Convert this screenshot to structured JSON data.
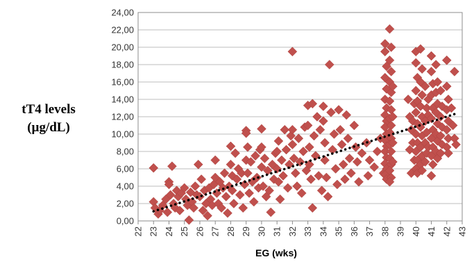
{
  "chart_data": {
    "type": "scatter",
    "ylabel_line1": "tT4  levels",
    "ylabel_line2": "(µg/dL)",
    "xlabel": "EG (wks)",
    "xlim": [
      22,
      43
    ],
    "ylim": [
      0,
      24
    ],
    "x_ticks": [
      "22",
      "23",
      "24",
      "25",
      "26",
      "27",
      "28",
      "29",
      "30",
      "31",
      "32",
      "33",
      "34",
      "35",
      "36",
      "37",
      "38",
      "39",
      "40",
      "41",
      "42",
      "43"
    ],
    "y_ticks": [
      "0,00",
      "2,00",
      "4,00",
      "6,00",
      "8,00",
      "10,00",
      "12,00",
      "14,00",
      "16,00",
      "18,00",
      "20,00",
      "22,00",
      "24,00"
    ],
    "trendline": {
      "style": "dotted",
      "color": "#000000",
      "x": [
        23,
        42.5
      ],
      "y": [
        1.1,
        12.3
      ]
    },
    "series": [
      {
        "marker": "diamond",
        "color": "#C0504D",
        "points": [
          [
            23.0,
            6.1
          ],
          [
            23.0,
            2.2
          ],
          [
            23.1,
            1.5
          ],
          [
            23.3,
            0.8
          ],
          [
            23.4,
            1.2
          ],
          [
            23.6,
            1.8
          ],
          [
            23.8,
            2.5
          ],
          [
            23.9,
            1.0
          ],
          [
            24.0,
            4.5
          ],
          [
            24.0,
            4.2
          ],
          [
            24.2,
            6.3
          ],
          [
            24.1,
            3.0
          ],
          [
            24.3,
            2.0
          ],
          [
            24.4,
            1.5
          ],
          [
            24.5,
            3.5
          ],
          [
            24.6,
            2.8
          ],
          [
            24.7,
            1.2
          ],
          [
            24.8,
            3.2
          ],
          [
            25.0,
            3.8
          ],
          [
            25.1,
            2.5
          ],
          [
            25.2,
            1.8
          ],
          [
            25.3,
            0.1
          ],
          [
            25.4,
            3.3
          ],
          [
            25.5,
            2.2
          ],
          [
            25.6,
            1.5
          ],
          [
            25.7,
            4.0
          ],
          [
            25.8,
            3.0
          ],
          [
            25.9,
            6.5
          ],
          [
            26.0,
            2.8
          ],
          [
            26.1,
            4.8
          ],
          [
            26.2,
            1.2
          ],
          [
            26.3,
            3.5
          ],
          [
            26.4,
            2.0
          ],
          [
            26.5,
            0.6
          ],
          [
            26.6,
            3.8
          ],
          [
            26.7,
            2.5
          ],
          [
            26.8,
            1.8
          ],
          [
            26.9,
            4.2
          ],
          [
            27.0,
            5.0
          ],
          [
            27.0,
            7.0
          ],
          [
            27.1,
            3.2
          ],
          [
            27.2,
            2.0
          ],
          [
            27.3,
            4.5
          ],
          [
            27.4,
            1.5
          ],
          [
            27.5,
            3.8
          ],
          [
            27.6,
            5.5
          ],
          [
            27.7,
            2.8
          ],
          [
            27.8,
            0.9
          ],
          [
            27.9,
            4.0
          ],
          [
            28.0,
            8.6
          ],
          [
            28.0,
            6.5
          ],
          [
            28.1,
            5.2
          ],
          [
            28.1,
            3.5
          ],
          [
            28.2,
            2.0
          ],
          [
            28.3,
            7.8
          ],
          [
            28.4,
            4.8
          ],
          [
            28.5,
            6.0
          ],
          [
            28.6,
            3.0
          ],
          [
            28.7,
            5.5
          ],
          [
            28.8,
            1.5
          ],
          [
            28.9,
            4.2
          ],
          [
            29.0,
            10.4
          ],
          [
            29.0,
            10.1
          ],
          [
            29.0,
            7.0
          ],
          [
            29.1,
            8.5
          ],
          [
            29.1,
            5.5
          ],
          [
            29.2,
            3.2
          ],
          [
            29.3,
            6.8
          ],
          [
            29.4,
            4.5
          ],
          [
            29.5,
            2.2
          ],
          [
            29.6,
            7.5
          ],
          [
            29.7,
            5.0
          ],
          [
            29.8,
            3.8
          ],
          [
            29.9,
            8.2
          ],
          [
            30.0,
            10.6
          ],
          [
            30.0,
            8.5
          ],
          [
            30.0,
            6.2
          ],
          [
            30.1,
            4.0
          ],
          [
            30.2,
            7.2
          ],
          [
            30.3,
            2.8
          ],
          [
            30.4,
            5.8
          ],
          [
            30.5,
            3.5
          ],
          [
            30.6,
            1.0
          ],
          [
            30.7,
            6.5
          ],
          [
            30.8,
            4.8
          ],
          [
            30.9,
            7.8
          ],
          [
            31.0,
            8.0
          ],
          [
            31.0,
            6.0
          ],
          [
            31.1,
            9.2
          ],
          [
            31.1,
            4.5
          ],
          [
            31.2,
            2.5
          ],
          [
            31.3,
            7.0
          ],
          [
            31.4,
            5.2
          ],
          [
            31.5,
            10.5
          ],
          [
            31.6,
            8.2
          ],
          [
            31.7,
            3.8
          ],
          [
            31.8,
            6.5
          ],
          [
            31.9,
            9.8
          ],
          [
            32.0,
            19.5
          ],
          [
            32.0,
            10.5
          ],
          [
            32.0,
            8.8
          ],
          [
            32.1,
            7.2
          ],
          [
            32.2,
            5.5
          ],
          [
            32.3,
            4.0
          ],
          [
            32.4,
            9.5
          ],
          [
            32.5,
            6.8
          ],
          [
            32.6,
            3.2
          ],
          [
            32.7,
            8.0
          ],
          [
            32.8,
            10.8
          ],
          [
            32.9,
            5.8
          ],
          [
            33.0,
            13.3
          ],
          [
            33.0,
            11.0
          ],
          [
            33.1,
            8.5
          ],
          [
            33.1,
            6.5
          ],
          [
            33.2,
            4.8
          ],
          [
            33.3,
            13.5
          ],
          [
            33.3,
            1.5
          ],
          [
            33.4,
            9.8
          ],
          [
            33.5,
            7.5
          ],
          [
            33.6,
            12.0
          ],
          [
            33.7,
            5.2
          ],
          [
            33.8,
            10.5
          ],
          [
            33.9,
            3.5
          ],
          [
            34.0,
            13.2
          ],
          [
            34.0,
            11.5
          ],
          [
            34.1,
            9.0
          ],
          [
            34.1,
            7.0
          ],
          [
            34.2,
            5.0
          ],
          [
            34.3,
            2.8
          ],
          [
            34.4,
            18.0
          ],
          [
            34.5,
            12.5
          ],
          [
            34.6,
            8.2
          ],
          [
            34.7,
            10.0
          ],
          [
            34.8,
            6.0
          ],
          [
            34.9,
            4.2
          ],
          [
            35.0,
            12.8
          ],
          [
            35.1,
            10.5
          ],
          [
            35.2,
            8.8
          ],
          [
            35.3,
            6.5
          ],
          [
            35.4,
            4.8
          ],
          [
            35.5,
            12.2
          ],
          [
            35.6,
            9.5
          ],
          [
            35.7,
            7.2
          ],
          [
            35.8,
            5.5
          ],
          [
            36.0,
            11.0
          ],
          [
            36.1,
            8.5
          ],
          [
            36.2,
            6.8
          ],
          [
            36.3,
            4.5
          ],
          [
            36.5,
            7.8
          ],
          [
            36.8,
            9.0
          ],
          [
            36.9,
            5.2
          ],
          [
            37.0,
            7.0
          ],
          [
            37.3,
            6.2
          ],
          [
            37.5,
            8.0
          ],
          [
            37.7,
            9.5
          ],
          [
            37.9,
            5.5
          ],
          [
            38.0,
            20.4
          ],
          [
            38.0,
            19.5
          ],
          [
            38.1,
            17.8
          ],
          [
            38.0,
            16.5
          ],
          [
            38.1,
            15.2
          ],
          [
            38.0,
            14.0
          ],
          [
            38.1,
            13.0
          ],
          [
            38.0,
            12.2
          ],
          [
            38.1,
            11.5
          ],
          [
            38.0,
            10.8
          ],
          [
            38.1,
            10.0
          ],
          [
            38.0,
            9.3
          ],
          [
            38.1,
            8.6
          ],
          [
            38.0,
            8.0
          ],
          [
            38.1,
            7.3
          ],
          [
            38.0,
            6.6
          ],
          [
            38.1,
            6.0
          ],
          [
            38.0,
            5.3
          ],
          [
            38.1,
            4.8
          ],
          [
            38.3,
            22.1
          ],
          [
            38.4,
            20.0
          ],
          [
            38.3,
            18.5
          ],
          [
            38.4,
            17.2
          ],
          [
            38.3,
            16.0
          ],
          [
            38.4,
            14.8
          ],
          [
            38.3,
            13.8
          ],
          [
            38.4,
            12.8
          ],
          [
            38.3,
            11.8
          ],
          [
            38.4,
            11.0
          ],
          [
            38.3,
            10.2
          ],
          [
            38.4,
            9.5
          ],
          [
            38.3,
            8.8
          ],
          [
            38.4,
            8.0
          ],
          [
            38.3,
            7.2
          ],
          [
            38.4,
            6.5
          ],
          [
            38.3,
            5.8
          ],
          [
            38.4,
            5.0
          ],
          [
            38.3,
            4.5
          ],
          [
            38.5,
            15.5
          ],
          [
            38.5,
            12.0
          ],
          [
            38.5,
            9.0
          ],
          [
            38.5,
            6.8
          ],
          [
            39.5,
            14.0
          ],
          [
            39.6,
            12.0
          ],
          [
            39.7,
            10.5
          ],
          [
            39.8,
            9.0
          ],
          [
            39.9,
            7.0
          ],
          [
            39.7,
            5.5
          ],
          [
            39.8,
            11.5
          ],
          [
            39.9,
            13.5
          ],
          [
            39.6,
            8.2
          ],
          [
            40.0,
            19.5
          ],
          [
            40.0,
            18.2
          ],
          [
            40.1,
            16.5
          ],
          [
            40.0,
            15.0
          ],
          [
            40.1,
            13.8
          ],
          [
            40.0,
            12.5
          ],
          [
            40.1,
            11.2
          ],
          [
            40.0,
            10.0
          ],
          [
            40.1,
            9.0
          ],
          [
            40.0,
            8.0
          ],
          [
            40.1,
            7.0
          ],
          [
            40.0,
            6.0
          ],
          [
            40.1,
            5.5
          ],
          [
            40.3,
            19.8
          ],
          [
            40.4,
            17.5
          ],
          [
            40.3,
            16.0
          ],
          [
            40.4,
            14.5
          ],
          [
            40.3,
            13.2
          ],
          [
            40.4,
            12.0
          ],
          [
            40.3,
            10.8
          ],
          [
            40.4,
            9.8
          ],
          [
            40.3,
            8.5
          ],
          [
            40.4,
            7.5
          ],
          [
            40.3,
            6.5
          ],
          [
            40.4,
            5.8
          ],
          [
            40.6,
            15.5
          ],
          [
            40.7,
            13.0
          ],
          [
            40.6,
            11.5
          ],
          [
            40.7,
            10.2
          ],
          [
            40.6,
            9.0
          ],
          [
            40.7,
            7.8
          ],
          [
            40.6,
            6.8
          ],
          [
            40.8,
            14.0
          ],
          [
            40.8,
            12.2
          ],
          [
            40.8,
            8.5
          ],
          [
            41.0,
            19.0
          ],
          [
            41.0,
            17.2
          ],
          [
            41.1,
            15.8
          ],
          [
            41.0,
            14.5
          ],
          [
            41.1,
            13.0
          ],
          [
            41.0,
            11.8
          ],
          [
            41.1,
            10.5
          ],
          [
            41.0,
            9.5
          ],
          [
            41.1,
            8.5
          ],
          [
            41.0,
            7.5
          ],
          [
            41.1,
            6.5
          ],
          [
            41.0,
            5.2
          ],
          [
            41.3,
            18.0
          ],
          [
            41.4,
            16.0
          ],
          [
            41.3,
            14.8
          ],
          [
            41.4,
            13.5
          ],
          [
            41.3,
            12.5
          ],
          [
            41.4,
            11.2
          ],
          [
            41.3,
            10.0
          ],
          [
            41.4,
            9.2
          ],
          [
            41.3,
            8.0
          ],
          [
            41.4,
            7.2
          ],
          [
            41.6,
            15.0
          ],
          [
            41.7,
            13.2
          ],
          [
            41.6,
            12.0
          ],
          [
            41.7,
            10.8
          ],
          [
            41.6,
            9.8
          ],
          [
            41.7,
            8.8
          ],
          [
            41.6,
            7.8
          ],
          [
            42.0,
            18.5
          ],
          [
            42.0,
            15.5
          ],
          [
            42.1,
            14.0
          ],
          [
            42.0,
            12.8
          ],
          [
            42.1,
            11.5
          ],
          [
            42.0,
            10.5
          ],
          [
            42.1,
            9.5
          ],
          [
            42.0,
            8.5
          ],
          [
            42.1,
            7.8
          ],
          [
            42.3,
            13.0
          ],
          [
            42.4,
            11.0
          ],
          [
            42.5,
            17.2
          ],
          [
            42.5,
            9.5
          ],
          [
            42.6,
            8.8
          ]
        ]
      }
    ]
  }
}
